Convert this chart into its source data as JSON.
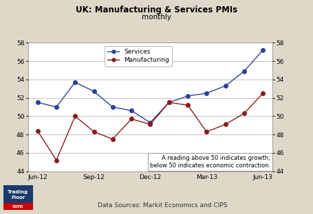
{
  "title": "UK: Manufacturing & Services PMIs",
  "subtitle": "monthly",
  "data_source": "Data Sources: Markit Economics and CIPS",
  "annotation": "A reading above 50 indicates growth;\nbelow 50 indicates economic contraction.",
  "x_labels": [
    "Jun-12",
    "Sep-12",
    "Dec-12",
    "Mar-13",
    "Jun-13"
  ],
  "x_positions": [
    0,
    3,
    6,
    9,
    12
  ],
  "services_x": [
    0,
    1,
    2,
    3,
    4,
    5,
    6,
    7,
    8,
    9,
    10,
    11,
    12
  ],
  "services_y": [
    51.5,
    51.0,
    53.7,
    52.7,
    51.0,
    50.6,
    49.3,
    51.5,
    52.2,
    52.5,
    53.3,
    54.9,
    57.2
  ],
  "manufacturing_x": [
    0,
    1,
    2,
    3,
    4,
    5,
    6,
    7,
    8,
    9,
    10,
    11,
    12
  ],
  "manufacturing_y": [
    48.4,
    45.2,
    50.0,
    48.3,
    47.5,
    49.7,
    49.1,
    51.5,
    51.2,
    48.3,
    49.1,
    50.3,
    52.5
  ],
  "services_color": "#2b4099",
  "manufacturing_color": "#8b1a1a",
  "background_color": "#ddd8c8",
  "plot_bg_color": "#ffffff",
  "grid_color": "#aaaaaa",
  "ylim": [
    44,
    58
  ],
  "yticks": [
    44,
    46,
    48,
    50,
    52,
    54,
    56,
    58
  ],
  "logo_bg": "#1a3a6b",
  "logo_red": "#cc0000"
}
